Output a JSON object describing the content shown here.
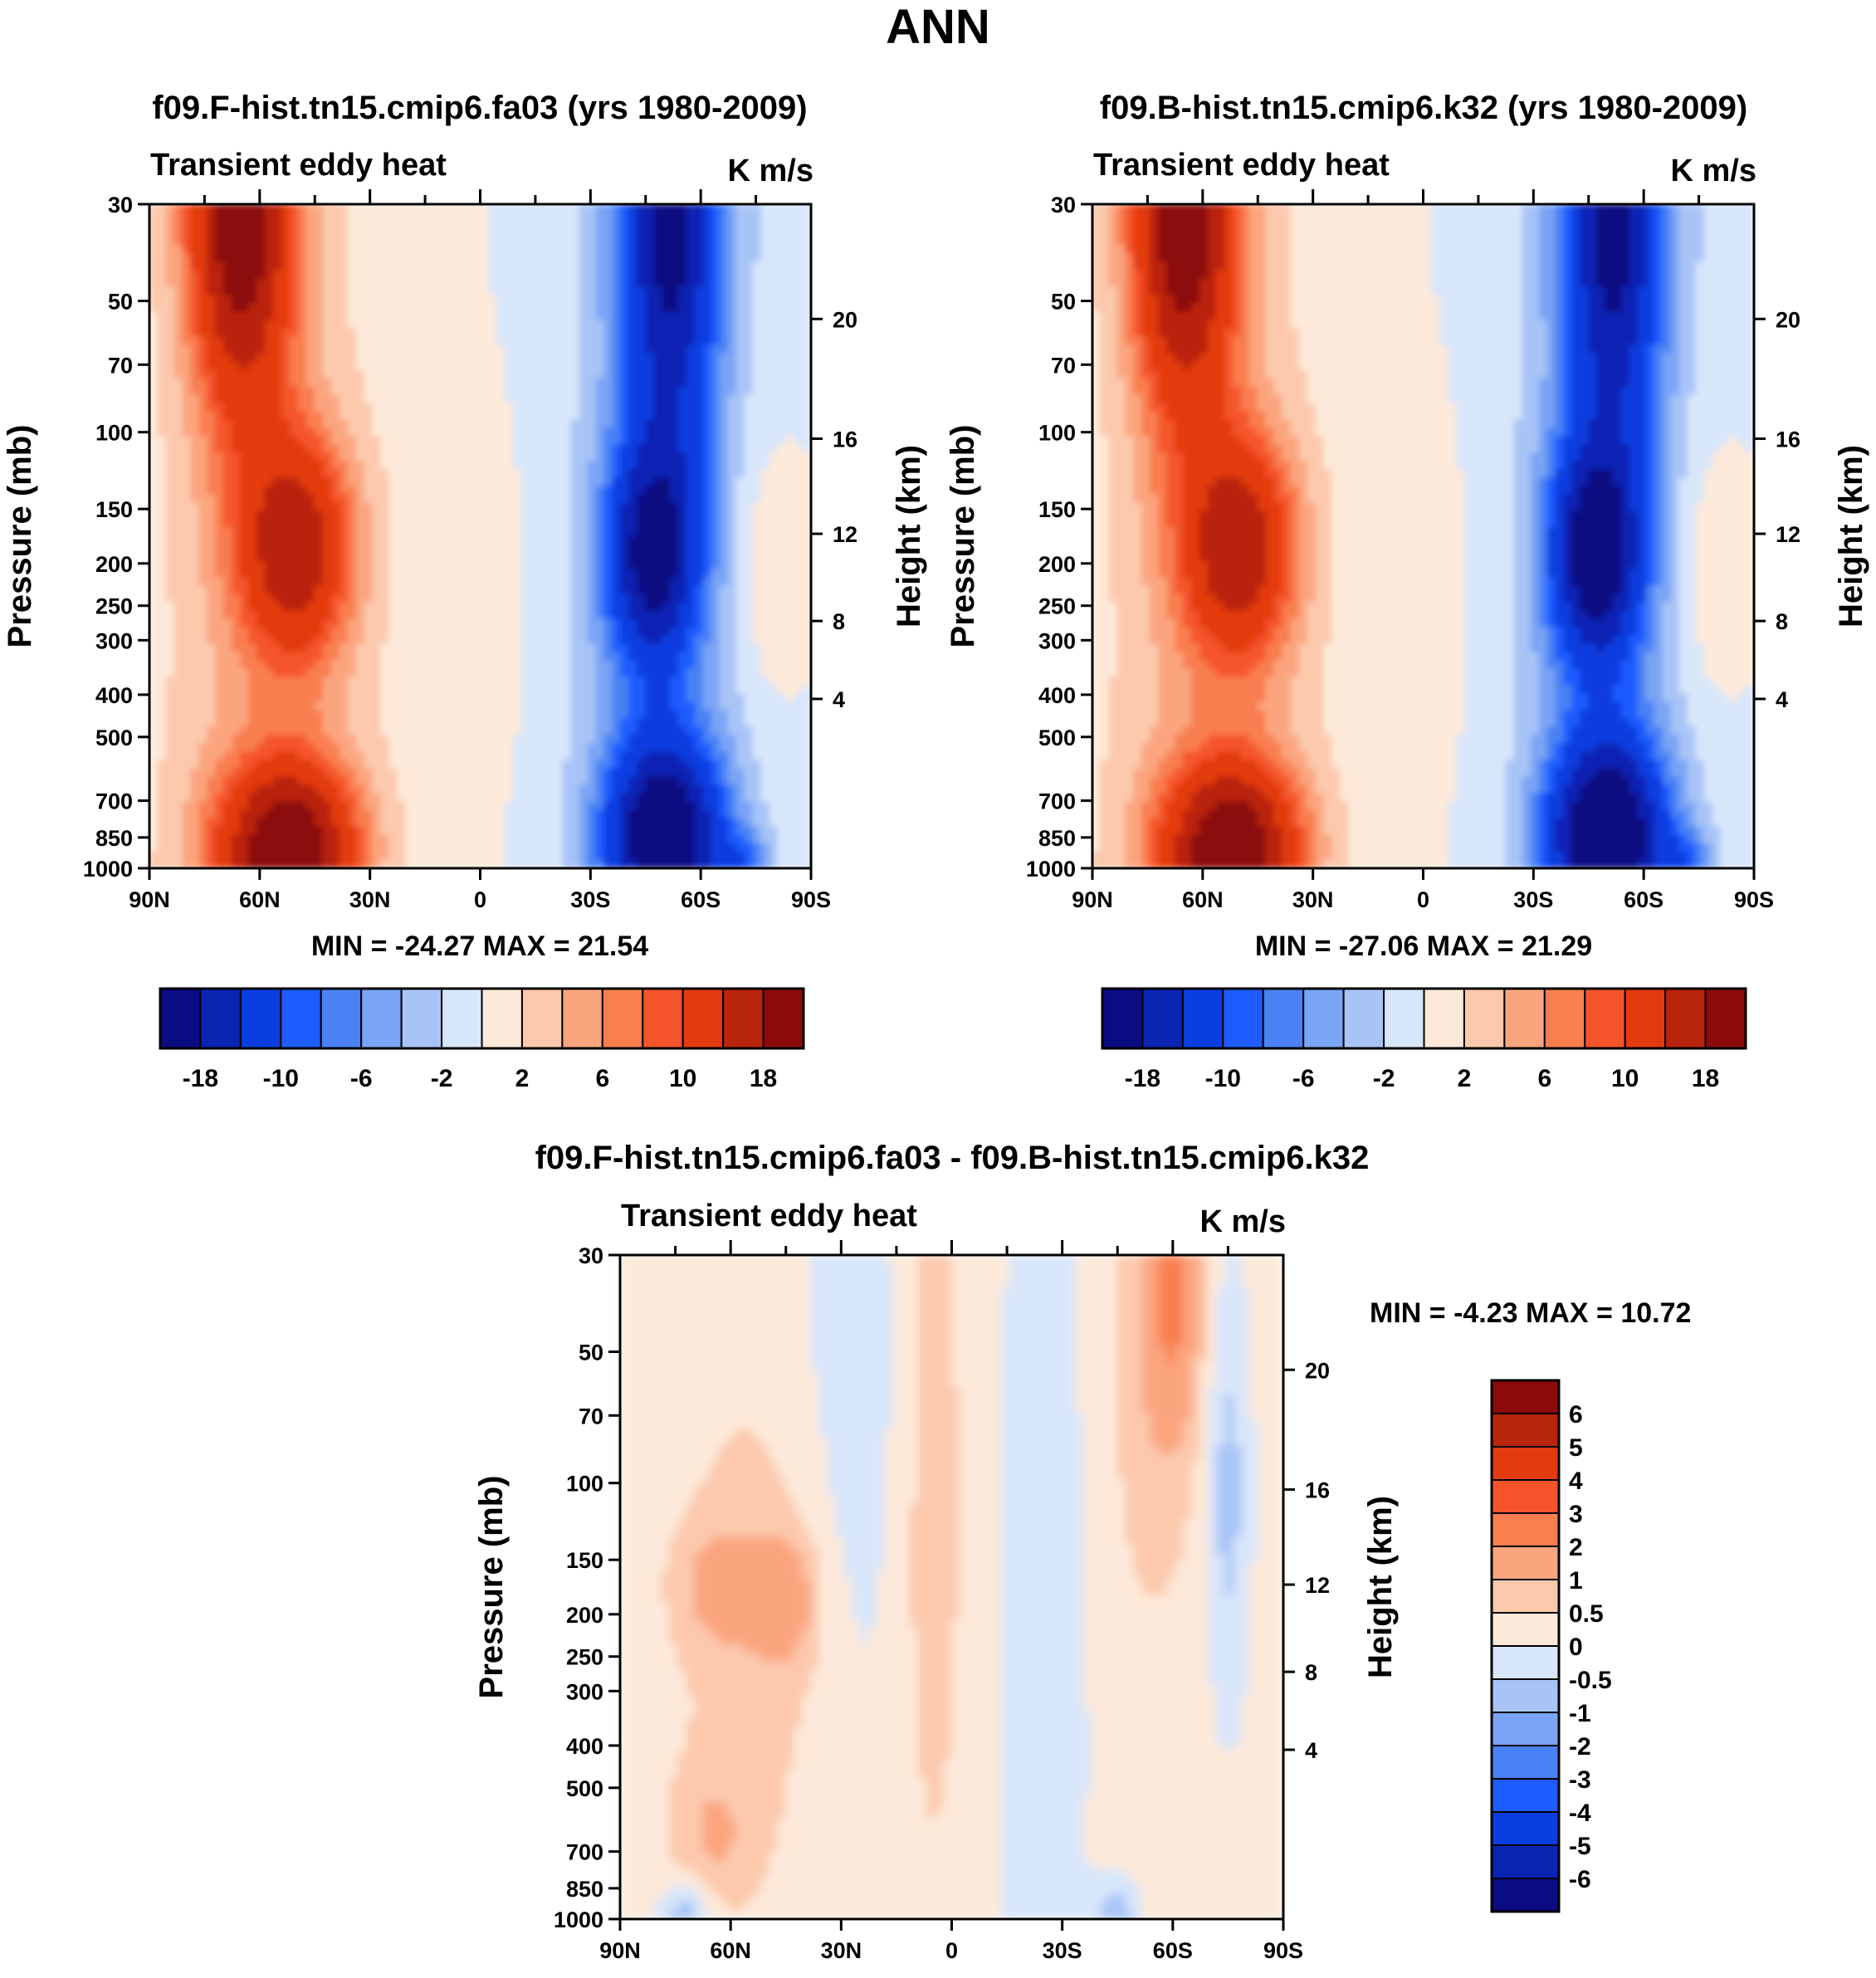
{
  "page_title": "ANN",
  "colors": {
    "seq16": [
      "#0b0b82",
      "#0a24b4",
      "#0a3ee0",
      "#1e5cff",
      "#4a82f5",
      "#7aa4f5",
      "#a8c4f7",
      "#d8e6fa",
      "#fde9d9",
      "#fcc9ad",
      "#fba57f",
      "#f97e50",
      "#f5542a",
      "#e33a10",
      "#b9240c",
      "#8c0a0a"
    ],
    "seq15": [
      "#0b0b82",
      "#0a24b4",
      "#0a3ee0",
      "#1e5cff",
      "#4a82f5",
      "#7aa4f5",
      "#a8c4f7",
      "#d8e6fa",
      "#fde9d9",
      "#fcc9ad",
      "#fba57f",
      "#f97e50",
      "#f5542a",
      "#e33a10",
      "#b9240c",
      "#8c0a0a"
    ]
  },
  "panels": [
    {
      "title": "f09.F-hist.tn15.cmip6.fa03 (yrs 1980-2009)",
      "subtitle_left": "Transient eddy heat",
      "subtitle_right": "K m/s",
      "ylabel": "Pressure (mb)",
      "ylabel_right": "Height (km)",
      "stats": "MIN = -24.27  MAX =  21.54",
      "peaks": {
        "nh_upper": 21.54,
        "sh_lower": -24.27
      }
    },
    {
      "title": "f09.B-hist.tn15.cmip6.k32 (yrs 1980-2009)",
      "subtitle_left": "Transient eddy heat",
      "subtitle_right": "K m/s",
      "ylabel": "Pressure (mb)",
      "ylabel_right": "Height (km)",
      "stats": "MIN = -27.06  MAX =  21.29",
      "peaks": {
        "nh_upper": 21.29,
        "sh_lower": -27.06
      }
    },
    {
      "title": "f09.F-hist.tn15.cmip6.fa03 - f09.B-hist.tn15.cmip6.k32",
      "subtitle_left": "Transient eddy heat",
      "subtitle_right": "K m/s",
      "ylabel": "Pressure (mb)",
      "ylabel_right": "Height (km)",
      "stats": "MIN =  -4.23  MAX =  10.72"
    }
  ],
  "chart_data": {
    "type": "heatmap",
    "title": "ANN",
    "x": {
      "tick_labels": [
        "90N",
        "60N",
        "30N",
        "0",
        "30S",
        "60S",
        "90S"
      ],
      "range": [
        90,
        -90
      ],
      "unit": "degrees latitude"
    },
    "y": {
      "tick_labels": [
        "30",
        "50",
        "70",
        "100",
        "150",
        "200",
        "250",
        "300",
        "400",
        "500",
        "700",
        "850",
        "1000"
      ],
      "range": [
        30,
        1000
      ],
      "unit": "mb",
      "scale": "log"
    },
    "y_right": {
      "tick_labels": [
        "20",
        "16",
        "12",
        "8",
        "4"
      ],
      "unit": "km"
    },
    "colorbar_main": {
      "orientation": "horizontal",
      "levels": [
        "-18",
        "-10",
        "-6",
        "-2",
        "2",
        "6",
        "10",
        "18"
      ],
      "bins": 16
    },
    "colorbar_diff": {
      "orientation": "vertical",
      "levels": [
        "6",
        "5",
        "4",
        "3",
        "2",
        "1",
        "0.5",
        "0",
        "-0.5",
        "-1",
        "-2",
        "-3",
        "-4",
        "-5",
        "-6"
      ],
      "bins": 16
    },
    "series": [
      {
        "name": "f09.F-hist.tn15.cmip6.fa03",
        "min": -24.27,
        "max": 21.54
      },
      {
        "name": "f09.B-hist.tn15.cmip6.k32",
        "min": -27.06,
        "max": 21.29
      },
      {
        "name": "difference",
        "min": -4.23,
        "max": 10.72
      }
    ]
  }
}
